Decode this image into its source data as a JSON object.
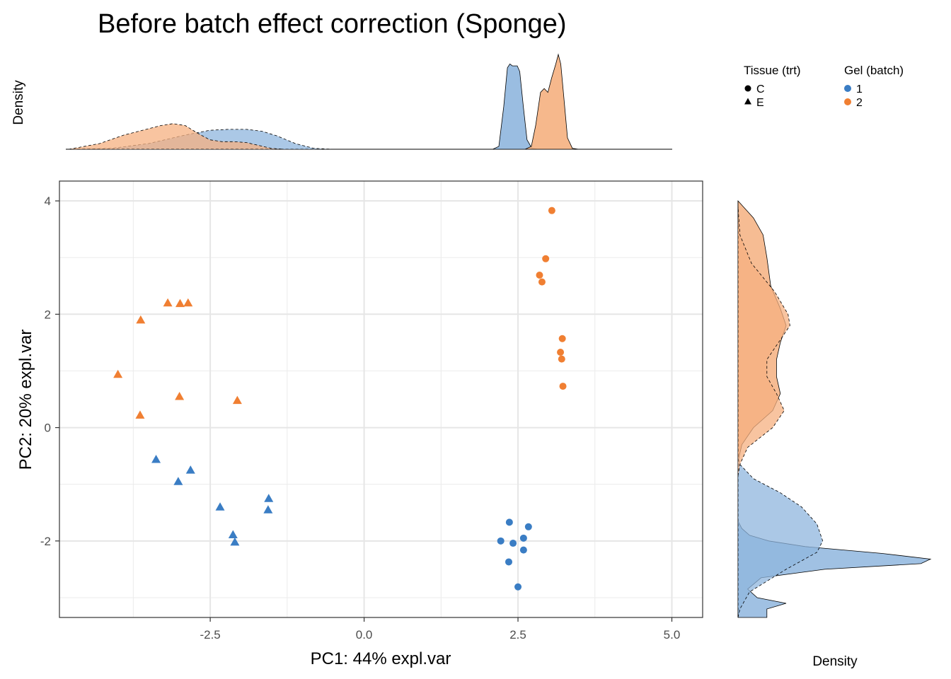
{
  "chart_data": {
    "type": "scatter",
    "title": "Before batch effect correction (Sponge)",
    "xlabel": "PC1: 44% expl.var",
    "ylabel": "PC2: 20% expl.var",
    "xlim": [
      -4.95,
      5.5
    ],
    "ylim": [
      -3.35,
      4.35
    ],
    "xticks": [
      -2.5,
      0.0,
      2.5,
      5.0
    ],
    "xtick_labels": [
      "-2.5",
      "0.0",
      "2.5",
      "5.0"
    ],
    "yticks": [
      -2,
      0,
      2,
      4
    ],
    "ytick_labels": [
      "-2",
      "0",
      "2",
      "4"
    ],
    "grid": true,
    "legend": {
      "placement": "top-right",
      "shape_title": "Tissue (trt)",
      "shape_entries": [
        {
          "label": "C",
          "shape": "circle"
        },
        {
          "label": "E",
          "shape": "triangle"
        }
      ],
      "color_title": "Gel (batch)",
      "color_entries": [
        {
          "label": "1",
          "color": "#3a7dc4"
        },
        {
          "label": "2",
          "color": "#f07f32"
        }
      ]
    },
    "colors": {
      "batch1": "#3a7dc4",
      "batch2": "#f07f32"
    },
    "density_label_top": "Density",
    "density_label_right": "Density",
    "points": [
      {
        "x": 3.05,
        "y": 3.83,
        "tissue": "C",
        "batch": "2"
      },
      {
        "x": 2.95,
        "y": 2.98,
        "tissue": "C",
        "batch": "2"
      },
      {
        "x": 2.85,
        "y": 2.69,
        "tissue": "C",
        "batch": "2"
      },
      {
        "x": 2.89,
        "y": 2.57,
        "tissue": "C",
        "batch": "2"
      },
      {
        "x": 3.22,
        "y": 1.57,
        "tissue": "C",
        "batch": "2"
      },
      {
        "x": 3.19,
        "y": 1.33,
        "tissue": "C",
        "batch": "2"
      },
      {
        "x": 3.21,
        "y": 1.21,
        "tissue": "C",
        "batch": "2"
      },
      {
        "x": 3.23,
        "y": 0.73,
        "tissue": "C",
        "batch": "2"
      },
      {
        "x": 2.36,
        "y": -1.67,
        "tissue": "C",
        "batch": "1"
      },
      {
        "x": 2.67,
        "y": -1.75,
        "tissue": "C",
        "batch": "1"
      },
      {
        "x": 2.22,
        "y": -2.0,
        "tissue": "C",
        "batch": "1"
      },
      {
        "x": 2.42,
        "y": -2.04,
        "tissue": "C",
        "batch": "1"
      },
      {
        "x": 2.59,
        "y": -1.95,
        "tissue": "C",
        "batch": "1"
      },
      {
        "x": 2.59,
        "y": -2.16,
        "tissue": "C",
        "batch": "1"
      },
      {
        "x": 2.35,
        "y": -2.37,
        "tissue": "C",
        "batch": "1"
      },
      {
        "x": 2.5,
        "y": -2.81,
        "tissue": "C",
        "batch": "1"
      },
      {
        "x": -3.19,
        "y": 2.2,
        "tissue": "E",
        "batch": "2"
      },
      {
        "x": -2.99,
        "y": 2.19,
        "tissue": "E",
        "batch": "2"
      },
      {
        "x": -2.86,
        "y": 2.2,
        "tissue": "E",
        "batch": "2"
      },
      {
        "x": -3.63,
        "y": 1.9,
        "tissue": "E",
        "batch": "2"
      },
      {
        "x": -4.0,
        "y": 0.94,
        "tissue": "E",
        "batch": "2"
      },
      {
        "x": -3.0,
        "y": 0.55,
        "tissue": "E",
        "batch": "2"
      },
      {
        "x": -2.06,
        "y": 0.48,
        "tissue": "E",
        "batch": "2"
      },
      {
        "x": -3.64,
        "y": 0.22,
        "tissue": "E",
        "batch": "2"
      },
      {
        "x": -3.38,
        "y": -0.56,
        "tissue": "E",
        "batch": "1"
      },
      {
        "x": -2.82,
        "y": -0.75,
        "tissue": "E",
        "batch": "1"
      },
      {
        "x": -3.02,
        "y": -0.95,
        "tissue": "E",
        "batch": "1"
      },
      {
        "x": -2.34,
        "y": -1.4,
        "tissue": "E",
        "batch": "1"
      },
      {
        "x": -1.55,
        "y": -1.25,
        "tissue": "E",
        "batch": "1"
      },
      {
        "x": -1.56,
        "y": -1.45,
        "tissue": "E",
        "batch": "1"
      },
      {
        "x": -2.13,
        "y": -1.89,
        "tissue": "E",
        "batch": "1"
      },
      {
        "x": -2.1,
        "y": -2.02,
        "tissue": "E",
        "batch": "1"
      }
    ],
    "marginal_densities": {
      "x": [
        {
          "name": "C-1",
          "batch": "1",
          "tissue": "C",
          "points": [
            [
              2.02,
              0
            ],
            [
              2.12,
              0.03
            ],
            [
              2.2,
              0.45
            ],
            [
              2.26,
              0.86
            ],
            [
              2.3,
              0.9
            ],
            [
              2.34,
              0.88
            ],
            [
              2.42,
              0.88
            ],
            [
              2.46,
              0.82
            ],
            [
              2.52,
              0.45
            ],
            [
              2.58,
              0.1
            ],
            [
              2.66,
              0.01
            ],
            [
              2.76,
              0
            ]
          ]
        },
        {
          "name": "C-2",
          "batch": "2",
          "tissue": "C",
          "points": [
            [
              2.55,
              0
            ],
            [
              2.65,
              0.03
            ],
            [
              2.72,
              0.25
            ],
            [
              2.8,
              0.6
            ],
            [
              2.86,
              0.64
            ],
            [
              2.92,
              0.6
            ],
            [
              2.98,
              0.75
            ],
            [
              3.05,
              0.9
            ],
            [
              3.09,
              1.0
            ],
            [
              3.13,
              0.9
            ],
            [
              3.18,
              0.55
            ],
            [
              3.24,
              0.12
            ],
            [
              3.32,
              0.01
            ],
            [
              3.42,
              0
            ]
          ]
        },
        {
          "name": "E-1",
          "batch": "1",
          "tissue": "E",
          "points": [
            [
              -4.9,
              0
            ],
            [
              -4.2,
              0.01
            ],
            [
              -3.6,
              0.06
            ],
            [
              -3.0,
              0.15
            ],
            [
              -2.6,
              0.2
            ],
            [
              -2.3,
              0.21
            ],
            [
              -2.0,
              0.21
            ],
            [
              -1.75,
              0.19
            ],
            [
              -1.5,
              0.14
            ],
            [
              -1.2,
              0.06
            ],
            [
              -0.9,
              0.01
            ],
            [
              -0.6,
              0
            ]
          ]
        },
        {
          "name": "E-2",
          "batch": "2",
          "tissue": "E",
          "points": [
            [
              -4.9,
              0
            ],
            [
              -4.4,
              0.06
            ],
            [
              -4.0,
              0.15
            ],
            [
              -3.7,
              0.2
            ],
            [
              -3.4,
              0.25
            ],
            [
              -3.2,
              0.27
            ],
            [
              -3.0,
              0.25
            ],
            [
              -2.8,
              0.17
            ],
            [
              -2.6,
              0.1
            ],
            [
              -2.4,
              0.08
            ],
            [
              -2.2,
              0.08
            ],
            [
              -2.0,
              0.07
            ],
            [
              -1.8,
              0.04
            ],
            [
              -1.6,
              0.01
            ],
            [
              -1.4,
              0
            ]
          ]
        }
      ],
      "y": [
        {
          "name": "C-1",
          "batch": "1",
          "tissue": "C",
          "points": [
            [
              -3.35,
              0.15
            ],
            [
              -3.2,
              0.15
            ],
            [
              -3.1,
              0.25
            ],
            [
              -3.0,
              0.1
            ],
            [
              -2.85,
              0.05
            ],
            [
              -2.65,
              0.12
            ],
            [
              -2.5,
              0.45
            ],
            [
              -2.4,
              0.95
            ],
            [
              -2.32,
              1.0
            ],
            [
              -2.22,
              0.75
            ],
            [
              -2.1,
              0.35
            ],
            [
              -2.0,
              0.16
            ],
            [
              -1.9,
              0.06
            ],
            [
              -1.78,
              0.02
            ],
            [
              -1.65,
              0
            ]
          ]
        },
        {
          "name": "C-2",
          "batch": "2",
          "tissue": "C",
          "points": [
            [
              -0.6,
              0
            ],
            [
              -0.3,
              0.02
            ],
            [
              0.0,
              0.08
            ],
            [
              0.3,
              0.18
            ],
            [
              0.6,
              0.22
            ],
            [
              0.9,
              0.2
            ],
            [
              1.2,
              0.2
            ],
            [
              1.5,
              0.22
            ],
            [
              1.8,
              0.25
            ],
            [
              2.1,
              0.22
            ],
            [
              2.5,
              0.17
            ],
            [
              3.0,
              0.15
            ],
            [
              3.4,
              0.13
            ],
            [
              3.7,
              0.08
            ],
            [
              4.0,
              0.0
            ]
          ]
        },
        {
          "name": "E-1",
          "batch": "1",
          "tissue": "E",
          "points": [
            [
              -3.35,
              0
            ],
            [
              -3.2,
              0.01
            ],
            [
              -2.9,
              0.06
            ],
            [
              -2.5,
              0.25
            ],
            [
              -2.2,
              0.41
            ],
            [
              -2.0,
              0.44
            ],
            [
              -1.7,
              0.41
            ],
            [
              -1.4,
              0.33
            ],
            [
              -1.15,
              0.22
            ],
            [
              -0.9,
              0.08
            ],
            [
              -0.65,
              0.01
            ],
            [
              -0.5,
              0
            ]
          ]
        },
        {
          "name": "E-2",
          "batch": "2",
          "tissue": "E",
          "points": [
            [
              -0.85,
              0
            ],
            [
              -0.65,
              0.01
            ],
            [
              -0.35,
              0.05
            ],
            [
              0.0,
              0.18
            ],
            [
              0.3,
              0.24
            ],
            [
              0.6,
              0.2
            ],
            [
              0.9,
              0.15
            ],
            [
              1.2,
              0.15
            ],
            [
              1.5,
              0.21
            ],
            [
              1.8,
              0.27
            ],
            [
              2.0,
              0.26
            ],
            [
              2.4,
              0.19
            ],
            [
              2.9,
              0.07
            ],
            [
              3.4,
              0.01
            ],
            [
              3.9,
              0
            ]
          ]
        }
      ]
    }
  }
}
